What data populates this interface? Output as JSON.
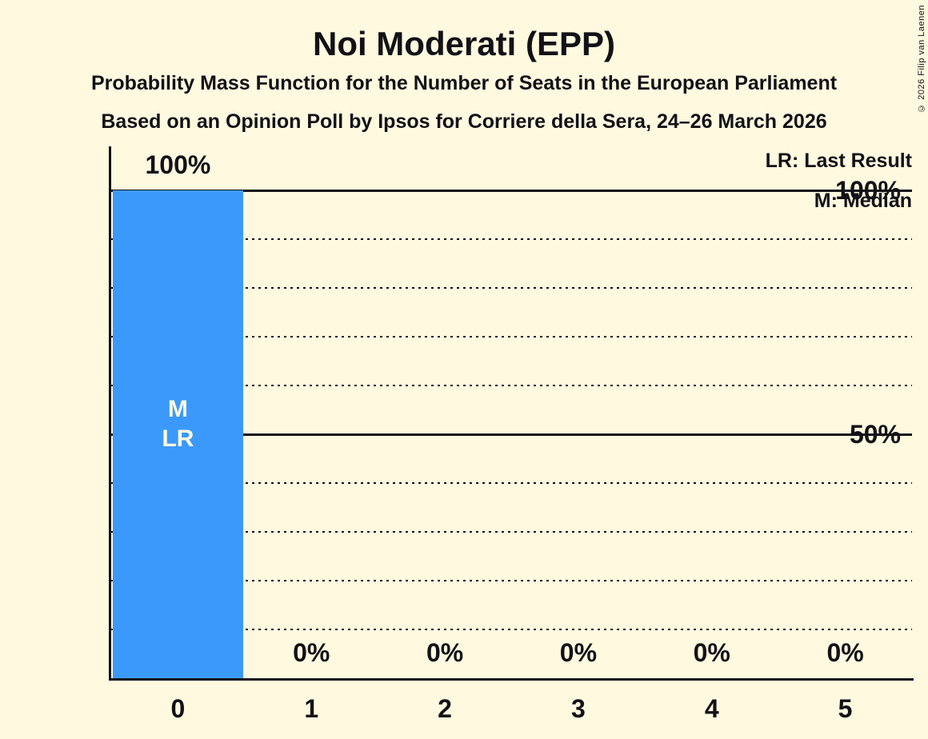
{
  "title": "Noi Moderati (EPP)",
  "subtitle1": "Probability Mass Function for the Number of Seats in the European Parliament",
  "subtitle2": "Based on an Opinion Poll by Ipsos for Corriere della Sera, 24–26 March 2026",
  "copyright": "© 2026 Filip van Laenen",
  "legend": {
    "lr": "LR: Last Result",
    "m": "M: Median"
  },
  "colors": {
    "background": "#FFF9E0",
    "bar": "#3B99FB",
    "text": "#121216",
    "bar_label": "#FFF9E0"
  },
  "chart_data": {
    "type": "bar",
    "title": "Noi Moderati (EPP)",
    "categories": [
      "0",
      "1",
      "2",
      "3",
      "4",
      "5"
    ],
    "values": [
      100,
      0,
      0,
      0,
      0,
      0
    ],
    "value_labels": [
      "100%",
      "0%",
      "0%",
      "0%",
      "0%",
      "0%"
    ],
    "bar_annotations": [
      [
        "M",
        "LR"
      ],
      [],
      [],
      [],
      [],
      []
    ],
    "xlabel": "",
    "ylabel": "",
    "ylim": [
      0,
      100
    ],
    "yticks": [
      {
        "value": 100,
        "label": "100%"
      },
      {
        "value": 50,
        "label": "50%"
      }
    ],
    "solid_gridlines": [
      100,
      50
    ],
    "dotted_gridlines": [
      90,
      80,
      70,
      60,
      40,
      30,
      20,
      10
    ],
    "grid": "horizontal-only",
    "legend_position": "top-right",
    "median_seats": "0",
    "last_result_seats": "0"
  }
}
